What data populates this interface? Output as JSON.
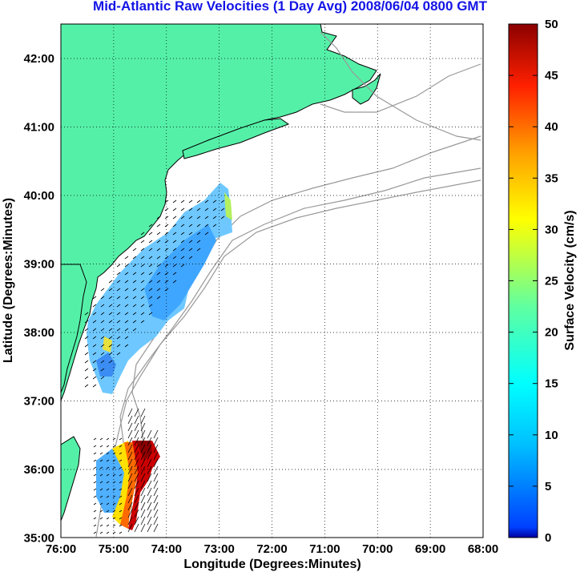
{
  "title": "Mid-Atlantic Raw Velocities (1 Day Avg) 2008/06/04 0800 GMT",
  "xlabel": "Longitude (Degrees:Minutes)",
  "ylabel": "Latitude (Degrees:Minutes)",
  "x_ticks": [
    "76:00",
    "75:00",
    "74:00",
    "73:00",
    "72:00",
    "71:00",
    "70:00",
    "69:00",
    "68:00"
  ],
  "y_ticks": [
    "42:00",
    "41:00",
    "40:00",
    "39:00",
    "38:00",
    "37:00",
    "36:00",
    "35:00"
  ],
  "colorbar": {
    "label": "Surface Velocity (cm/s)",
    "ticks": [
      "0",
      "5",
      "10",
      "15",
      "20",
      "25",
      "30",
      "35",
      "40",
      "45",
      "50"
    ],
    "range": [
      0,
      50
    ],
    "colormap": "jet"
  },
  "colors": {
    "land": "#55f0a8",
    "coast": "#000000",
    "bathymetry": "#999999",
    "title": "#1414e6",
    "grid": "#000000"
  },
  "map_extent": {
    "lon": [
      -76,
      -68
    ],
    "lat": [
      35,
      42.5
    ]
  }
}
